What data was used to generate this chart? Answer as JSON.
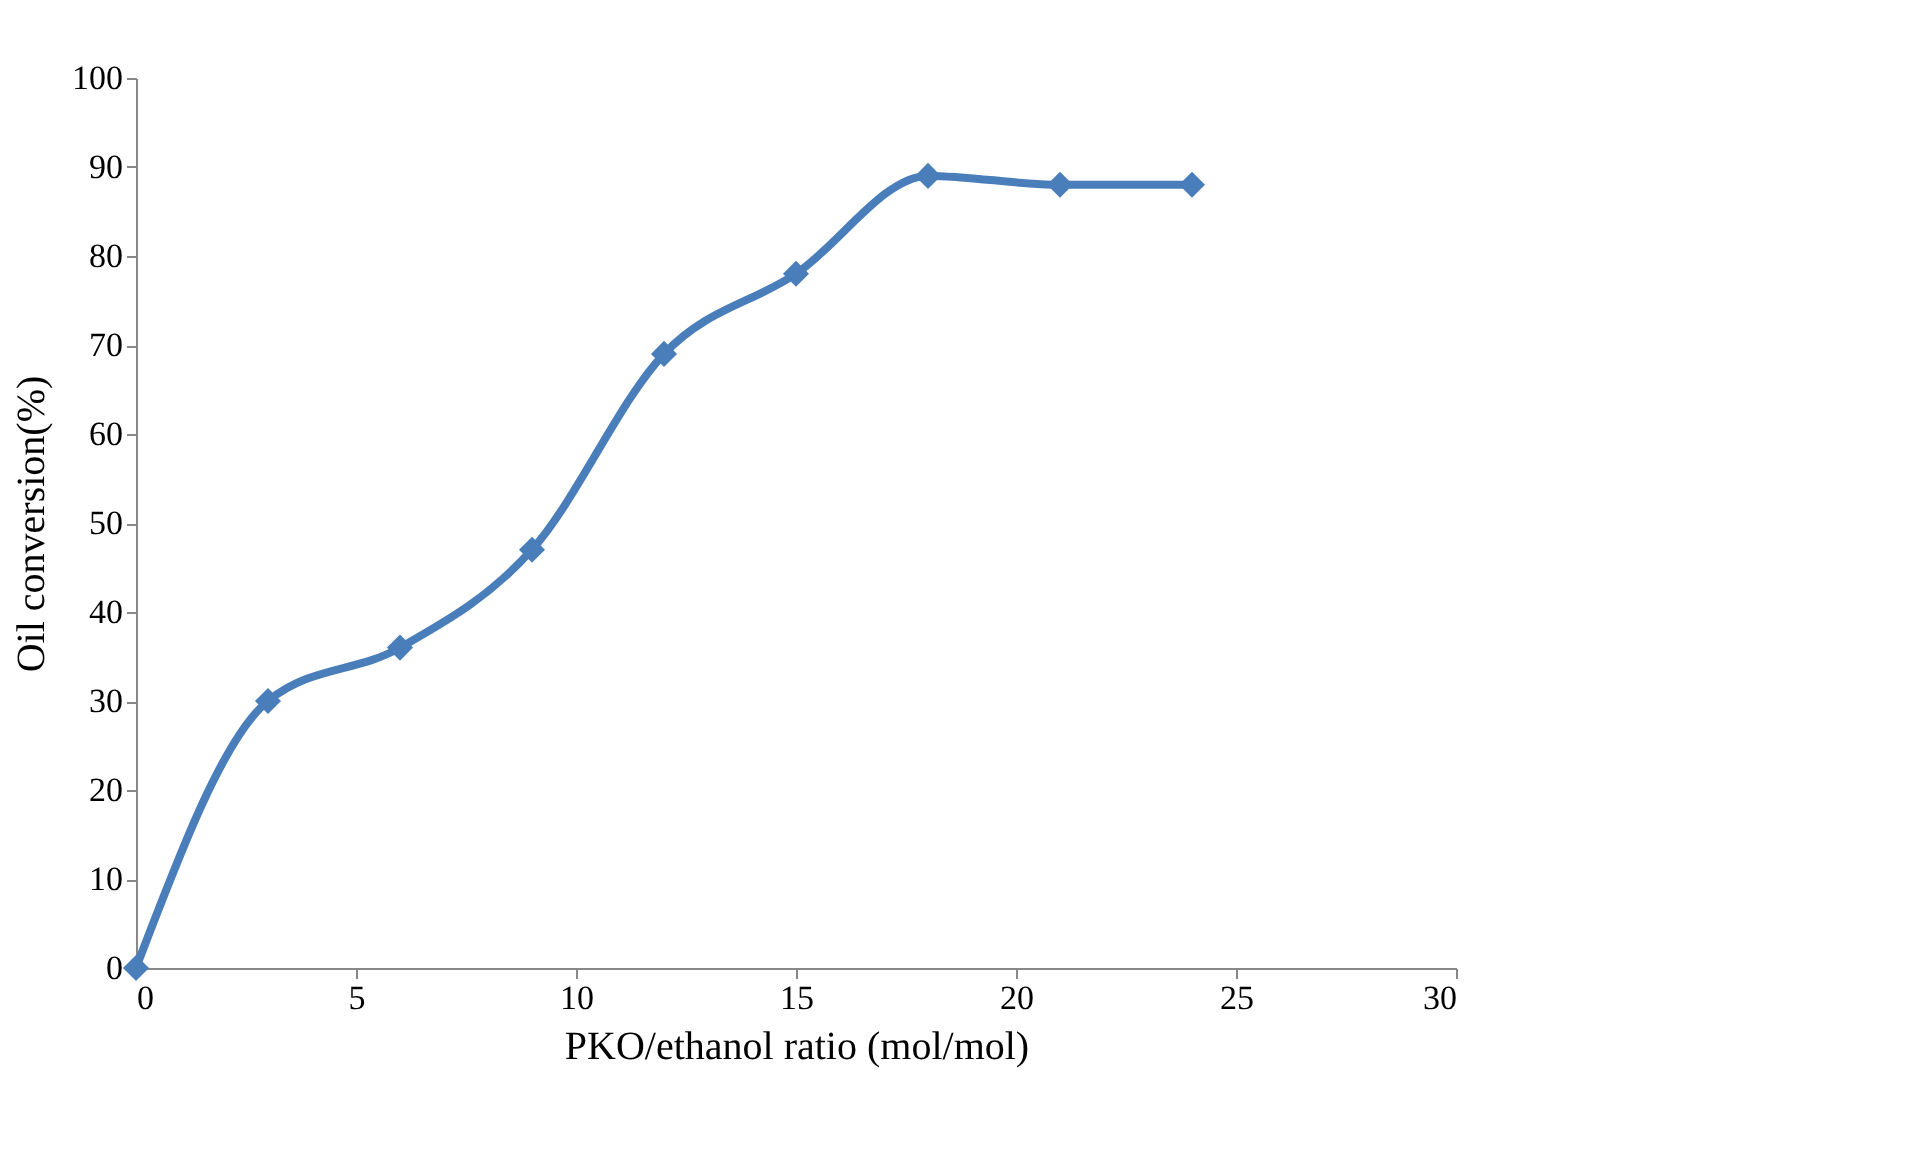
{
  "chart_data": {
    "type": "line",
    "xlabel": "PKO/ethanol ratio  (mol/mol)",
    "ylabel": "Oil conversion(%)",
    "x": [
      0,
      3,
      6,
      9,
      12,
      15,
      18,
      21,
      24
    ],
    "series": [
      {
        "color": "#4a7ebb",
        "values": [
          0,
          30,
          36,
          47,
          69,
          78,
          89,
          88,
          88
        ]
      }
    ],
    "xlim": [
      0,
      30
    ],
    "xticks": [
      0,
      5,
      10,
      15,
      20,
      25,
      30
    ],
    "ylim": [
      0,
      100
    ],
    "yticks": [
      0,
      10,
      20,
      30,
      40,
      50,
      60,
      70,
      80,
      90,
      100
    ],
    "grid": false,
    "marker": "diamond",
    "line_style": "solid"
  }
}
